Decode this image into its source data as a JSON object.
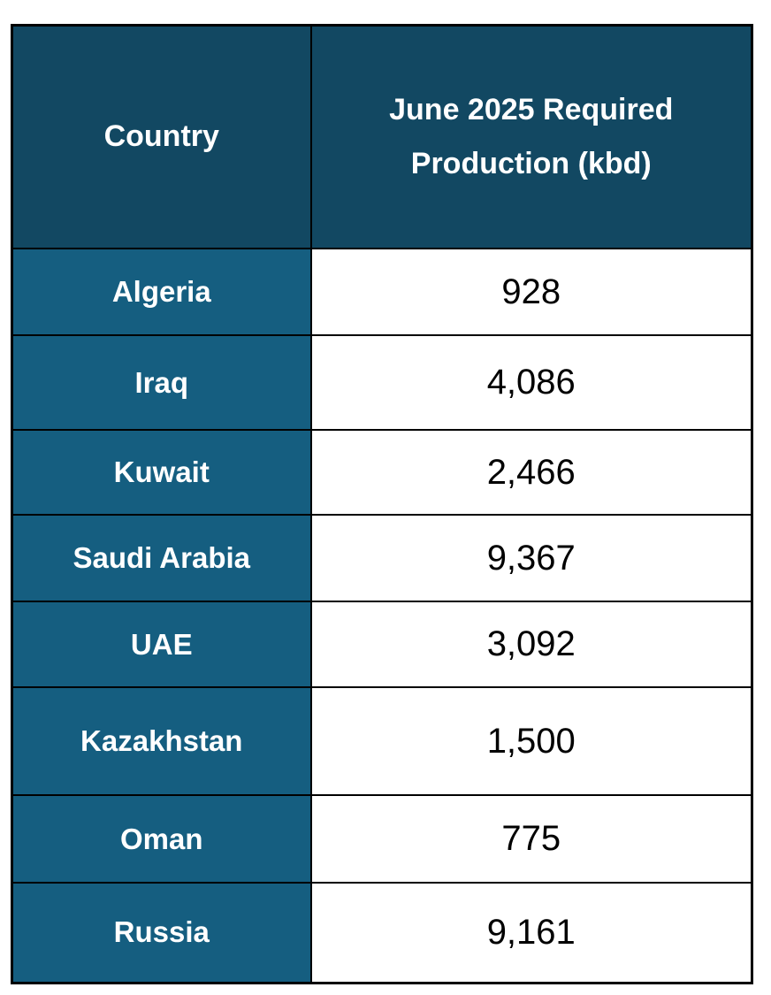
{
  "table": {
    "headers": [
      "Country",
      "June 2025 Required Production (kbd)"
    ],
    "rows": [
      {
        "country": "Algeria",
        "value": "928"
      },
      {
        "country": "Iraq",
        "value": "4,086"
      },
      {
        "country": "Kuwait",
        "value": "2,466"
      },
      {
        "country": "Saudi Arabia",
        "value": "9,367"
      },
      {
        "country": "UAE",
        "value": "3,092"
      },
      {
        "country": "Kazakhstan",
        "value": "1,500"
      },
      {
        "country": "Oman",
        "value": "775"
      },
      {
        "country": "Russia",
        "value": "9,161"
      }
    ]
  },
  "colors": {
    "header_bg": "#124862",
    "country_bg": "#155E80",
    "value_bg": "#ffffff"
  }
}
